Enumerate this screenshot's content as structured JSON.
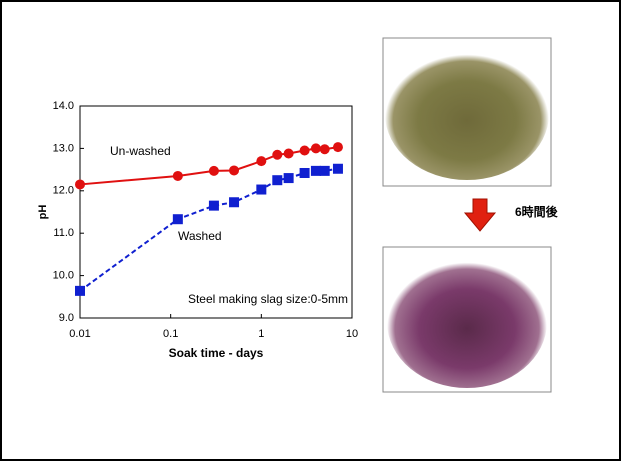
{
  "chart_data": {
    "type": "line",
    "x_label": "Soak time - days",
    "y_label": "pH",
    "log_x": true,
    "xlim": [
      0.01,
      10
    ],
    "xticks": [
      0.01,
      0.1,
      1,
      10
    ],
    "ylim": [
      9.0,
      14.0
    ],
    "yticks": [
      {
        "value": 9.0,
        "label": "9.0"
      },
      {
        "value": 10.0,
        "label": "10.0"
      },
      {
        "value": 11.0,
        "label": "11.0"
      },
      {
        "value": 12.0,
        "label": "12.0"
      },
      {
        "value": 13.0,
        "label": "13.0"
      },
      {
        "value": 14.0,
        "label": "14.0"
      }
    ],
    "series": [
      {
        "name": "Un-washed",
        "color": "#e01010",
        "marker": "circle",
        "dashed": false,
        "x": [
          0.01,
          0.12,
          0.3,
          0.5,
          1,
          1.5,
          2,
          3,
          4,
          5,
          7
        ],
        "values": [
          12.15,
          12.35,
          12.47,
          12.48,
          12.7,
          12.85,
          12.88,
          12.95,
          13.0,
          12.98,
          13.03
        ]
      },
      {
        "name": "Washed",
        "color": "#1020d0",
        "marker": "square",
        "dashed": true,
        "x": [
          0.01,
          0.12,
          0.3,
          0.5,
          1,
          1.5,
          2,
          3,
          4,
          5,
          7
        ],
        "values": [
          9.64,
          11.33,
          11.65,
          11.73,
          12.03,
          12.25,
          12.3,
          12.42,
          12.47,
          12.47,
          12.52
        ]
      }
    ],
    "annotations": [
      "Steel making slag size:0-5mm",
      "6時間後"
    ]
  }
}
